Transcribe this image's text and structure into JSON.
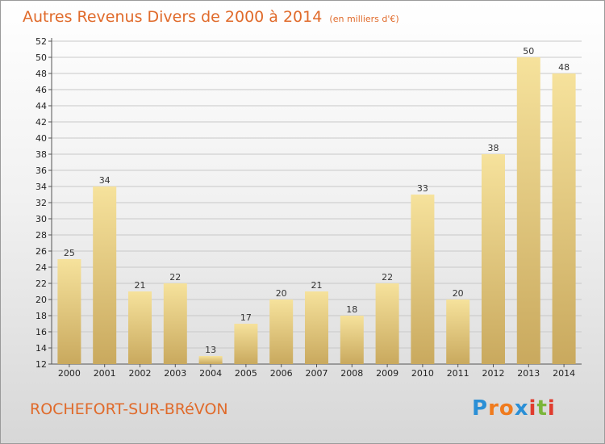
{
  "title": "Autres Revenus Divers de 2000 à 2014",
  "unit_note": "(en milliers d'€)",
  "town": "ROCHEFORT-SUR-BRéVON",
  "logo": {
    "text": "Proxiti",
    "letters": [
      "P",
      "r",
      "o",
      "x",
      "i",
      "t",
      "i"
    ],
    "colors": [
      "#2a8fd6",
      "#f07b1e",
      "#f07b1e",
      "#2a8fd6",
      "#e03c2e",
      "#7bb63a",
      "#e03c2e"
    ]
  },
  "colors": {
    "title": "#e06a2a",
    "bar_top": "#f6e29c",
    "bar_bottom": "#c9a95e",
    "grid": "#c8c8c8"
  },
  "chart_data": {
    "type": "bar",
    "categories": [
      "2000",
      "2001",
      "2002",
      "2003",
      "2004",
      "2005",
      "2006",
      "2007",
      "2008",
      "2009",
      "2010",
      "2011",
      "2012",
      "2013",
      "2014"
    ],
    "values": [
      25,
      34,
      21,
      22,
      13,
      17,
      20,
      21,
      18,
      22,
      33,
      20,
      38,
      50,
      48
    ],
    "ylim": [
      12,
      52
    ],
    "yticks": [
      12,
      14,
      16,
      18,
      20,
      22,
      24,
      26,
      28,
      30,
      32,
      34,
      36,
      38,
      40,
      42,
      44,
      46,
      48,
      50,
      52
    ],
    "grid": true,
    "data_labels": true,
    "title": "Autres Revenus Divers de 2000 à 2014",
    "xlabel": "",
    "ylabel": ""
  }
}
